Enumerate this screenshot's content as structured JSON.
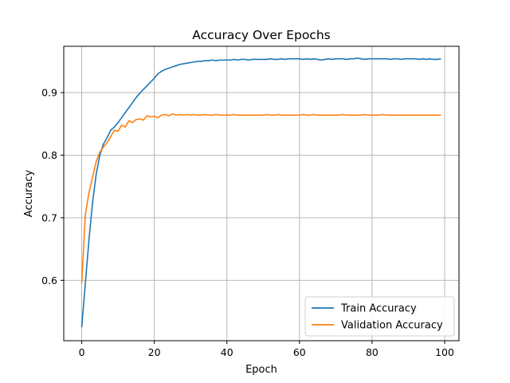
{
  "chart_data": {
    "type": "line",
    "title": "Accuracy Over Epochs",
    "xlabel": "Epoch",
    "ylabel": "Accuracy",
    "xlim": [
      -4.95,
      103.95
    ],
    "ylim": [
      0.5035,
      0.974
    ],
    "xticks": [
      0,
      20,
      40,
      60,
      80,
      100
    ],
    "yticks": [
      0.6,
      0.7,
      0.8,
      0.9
    ],
    "ytick_labels": [
      "0.6",
      "0.7",
      "0.8",
      "0.9"
    ],
    "grid": true,
    "legend_position": "lower-right",
    "series": [
      {
        "name": "Train Accuracy",
        "color": "#1f77b4",
        "values": [
          0.525,
          0.595,
          0.665,
          0.725,
          0.77,
          0.8,
          0.818,
          0.828,
          0.84,
          0.845,
          0.852,
          0.86,
          0.868,
          0.876,
          0.884,
          0.892,
          0.899,
          0.905,
          0.911,
          0.917,
          0.923,
          0.93,
          0.934,
          0.937,
          0.939,
          0.941,
          0.943,
          0.945,
          0.946,
          0.947,
          0.948,
          0.949,
          0.95,
          0.95,
          0.951,
          0.951,
          0.952,
          0.951,
          0.952,
          0.952,
          0.952,
          0.952,
          0.953,
          0.952,
          0.953,
          0.953,
          0.952,
          0.953,
          0.953,
          0.953,
          0.953,
          0.953,
          0.954,
          0.953,
          0.953,
          0.954,
          0.953,
          0.954,
          0.954,
          0.954,
          0.954,
          0.953,
          0.954,
          0.953,
          0.954,
          0.953,
          0.952,
          0.953,
          0.954,
          0.953,
          0.954,
          0.954,
          0.954,
          0.953,
          0.954,
          0.954,
          0.955,
          0.954,
          0.953,
          0.954,
          0.954,
          0.954,
          0.954,
          0.954,
          0.954,
          0.953,
          0.954,
          0.954,
          0.953,
          0.954,
          0.954,
          0.954,
          0.954,
          0.953,
          0.954,
          0.953,
          0.954,
          0.953,
          0.953,
          0.954
        ]
      },
      {
        "name": "Validation Accuracy",
        "color": "#ff7f0e",
        "values": [
          0.595,
          0.705,
          0.74,
          0.765,
          0.79,
          0.805,
          0.813,
          0.82,
          0.83,
          0.84,
          0.838,
          0.848,
          0.845,
          0.855,
          0.852,
          0.857,
          0.858,
          0.856,
          0.863,
          0.861,
          0.862,
          0.86,
          0.864,
          0.865,
          0.863,
          0.866,
          0.864,
          0.865,
          0.864,
          0.865,
          0.864,
          0.865,
          0.864,
          0.864,
          0.865,
          0.864,
          0.864,
          0.865,
          0.864,
          0.864,
          0.864,
          0.864,
          0.865,
          0.864,
          0.864,
          0.864,
          0.864,
          0.864,
          0.864,
          0.864,
          0.864,
          0.865,
          0.864,
          0.864,
          0.865,
          0.864,
          0.864,
          0.864,
          0.864,
          0.864,
          0.864,
          0.865,
          0.864,
          0.864,
          0.865,
          0.864,
          0.864,
          0.864,
          0.864,
          0.864,
          0.864,
          0.864,
          0.865,
          0.864,
          0.864,
          0.864,
          0.864,
          0.864,
          0.865,
          0.864,
          0.864,
          0.864,
          0.864,
          0.865,
          0.864,
          0.864,
          0.864,
          0.864,
          0.864,
          0.864,
          0.864,
          0.864,
          0.864,
          0.864,
          0.864,
          0.864,
          0.864,
          0.864,
          0.864,
          0.864
        ]
      }
    ]
  }
}
